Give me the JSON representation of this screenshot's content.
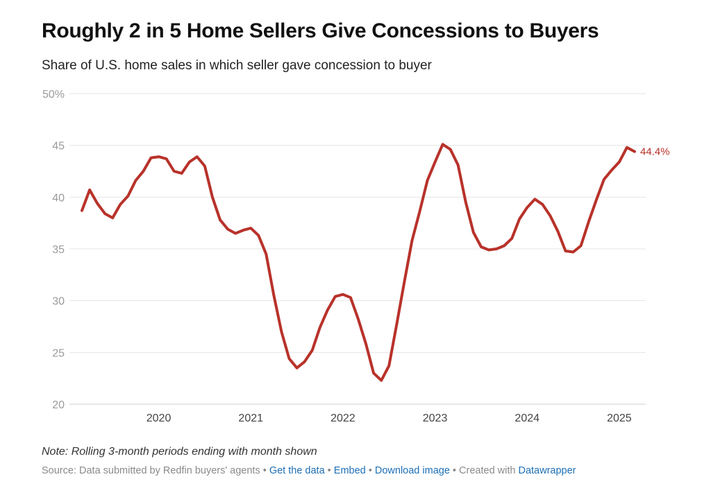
{
  "title": "Roughly 2 in 5 Home Sellers Give Concessions to Buyers",
  "subtitle": "Share of U.S. home sales in which seller gave concession to buyer",
  "note": "Note: Rolling 3-month periods ending with month shown",
  "footer": {
    "source": "Source: Data submitted by Redfin buyers' agents",
    "separator": " • ",
    "get_data": "Get the data",
    "embed": "Embed",
    "download": "Download image",
    "created_with": "Created with",
    "datawrapper": "Datawrapper"
  },
  "colors": {
    "line": "#b8322a",
    "grid": "#e4e4e4",
    "link": "#1d6fb5"
  },
  "chart_data": {
    "type": "line",
    "title": "Roughly 2 in 5 Home Sellers Give Concessions to Buyers",
    "subtitle": "Share of U.S. home sales in which seller gave concession to buyer",
    "xlabel": "",
    "ylabel": "",
    "ylim": [
      20,
      50
    ],
    "y_ticks": [
      "50%",
      "45",
      "40",
      "35",
      "30",
      "25",
      "20"
    ],
    "y_tick_values": [
      50,
      45,
      40,
      35,
      30,
      25,
      20
    ],
    "x_ticks": [
      "2020",
      "2021",
      "2022",
      "2023",
      "2024",
      "2025"
    ],
    "grid": "horizontal",
    "end_label": "44.4%",
    "series": [
      {
        "color": "#b8322a",
        "points": [
          {
            "date": "2019-03",
            "value": 38.7
          },
          {
            "date": "2019-04",
            "value": 40.7
          },
          {
            "date": "2019-05",
            "value": 39.4
          },
          {
            "date": "2019-06",
            "value": 38.4
          },
          {
            "date": "2019-07",
            "value": 38.0
          },
          {
            "date": "2019-08",
            "value": 39.3
          },
          {
            "date": "2019-09",
            "value": 40.1
          },
          {
            "date": "2019-10",
            "value": 41.6
          },
          {
            "date": "2019-11",
            "value": 42.5
          },
          {
            "date": "2019-12",
            "value": 43.8
          },
          {
            "date": "2020-01",
            "value": 43.9
          },
          {
            "date": "2020-02",
            "value": 43.7
          },
          {
            "date": "2020-03",
            "value": 42.5
          },
          {
            "date": "2020-04",
            "value": 42.3
          },
          {
            "date": "2020-05",
            "value": 43.4
          },
          {
            "date": "2020-06",
            "value": 43.9
          },
          {
            "date": "2020-07",
            "value": 43.0
          },
          {
            "date": "2020-08",
            "value": 40.0
          },
          {
            "date": "2020-09",
            "value": 37.8
          },
          {
            "date": "2020-10",
            "value": 36.9
          },
          {
            "date": "2020-11",
            "value": 36.5
          },
          {
            "date": "2020-12",
            "value": 36.8
          },
          {
            "date": "2021-01",
            "value": 37.0
          },
          {
            "date": "2021-02",
            "value": 36.3
          },
          {
            "date": "2021-03",
            "value": 34.5
          },
          {
            "date": "2021-04",
            "value": 30.5
          },
          {
            "date": "2021-05",
            "value": 27.0
          },
          {
            "date": "2021-06",
            "value": 24.4
          },
          {
            "date": "2021-07",
            "value": 23.5
          },
          {
            "date": "2021-08",
            "value": 24.1
          },
          {
            "date": "2021-09",
            "value": 25.2
          },
          {
            "date": "2021-10",
            "value": 27.4
          },
          {
            "date": "2021-11",
            "value": 29.1
          },
          {
            "date": "2021-12",
            "value": 30.4
          },
          {
            "date": "2022-01",
            "value": 30.6
          },
          {
            "date": "2022-02",
            "value": 30.3
          },
          {
            "date": "2022-03",
            "value": 28.2
          },
          {
            "date": "2022-04",
            "value": 25.8
          },
          {
            "date": "2022-05",
            "value": 23.0
          },
          {
            "date": "2022-06",
            "value": 22.3
          },
          {
            "date": "2022-07",
            "value": 23.7
          },
          {
            "date": "2022-08",
            "value": 27.7
          },
          {
            "date": "2022-09",
            "value": 31.8
          },
          {
            "date": "2022-10",
            "value": 35.8
          },
          {
            "date": "2022-11",
            "value": 38.6
          },
          {
            "date": "2022-12",
            "value": 41.6
          },
          {
            "date": "2023-01",
            "value": 43.4
          },
          {
            "date": "2023-02",
            "value": 45.1
          },
          {
            "date": "2023-03",
            "value": 44.6
          },
          {
            "date": "2023-04",
            "value": 43.1
          },
          {
            "date": "2023-05",
            "value": 39.5
          },
          {
            "date": "2023-06",
            "value": 36.6
          },
          {
            "date": "2023-07",
            "value": 35.2
          },
          {
            "date": "2023-08",
            "value": 34.9
          },
          {
            "date": "2023-09",
            "value": 35.0
          },
          {
            "date": "2023-10",
            "value": 35.3
          },
          {
            "date": "2023-11",
            "value": 36.0
          },
          {
            "date": "2023-12",
            "value": 37.9
          },
          {
            "date": "2024-01",
            "value": 39.0
          },
          {
            "date": "2024-02",
            "value": 39.8
          },
          {
            "date": "2024-03",
            "value": 39.3
          },
          {
            "date": "2024-04",
            "value": 38.2
          },
          {
            "date": "2024-05",
            "value": 36.7
          },
          {
            "date": "2024-06",
            "value": 34.8
          },
          {
            "date": "2024-07",
            "value": 34.7
          },
          {
            "date": "2024-08",
            "value": 35.3
          },
          {
            "date": "2024-09",
            "value": 37.6
          },
          {
            "date": "2024-10",
            "value": 39.7
          },
          {
            "date": "2024-11",
            "value": 41.7
          },
          {
            "date": "2024-12",
            "value": 42.6
          },
          {
            "date": "2025-01",
            "value": 43.4
          },
          {
            "date": "2025-02",
            "value": 44.8
          },
          {
            "date": "2025-03",
            "value": 44.4
          }
        ]
      }
    ]
  }
}
